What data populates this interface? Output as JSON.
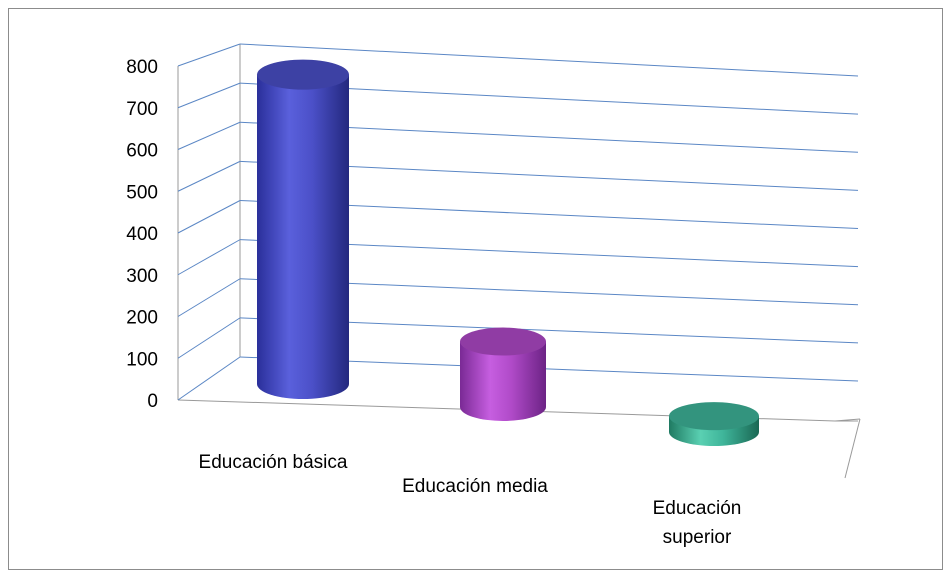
{
  "chart_data": {
    "type": "bar",
    "style": "3d-cylinder",
    "categories": [
      "Educación básica",
      "Educación media",
      "Educación superior"
    ],
    "category_lines": [
      [
        "Educación básica"
      ],
      [
        "Educación media"
      ],
      [
        "Educación",
        "superior"
      ]
    ],
    "values": [
      780,
      165,
      40
    ],
    "colors": [
      "#4b50c8",
      "#b04ac8",
      "#3fb59a"
    ],
    "ylim": [
      0,
      800
    ],
    "yticks": [
      0,
      100,
      200,
      300,
      400,
      500,
      600,
      700,
      800
    ],
    "grid": true,
    "gridColor": "#5b87c5"
  }
}
